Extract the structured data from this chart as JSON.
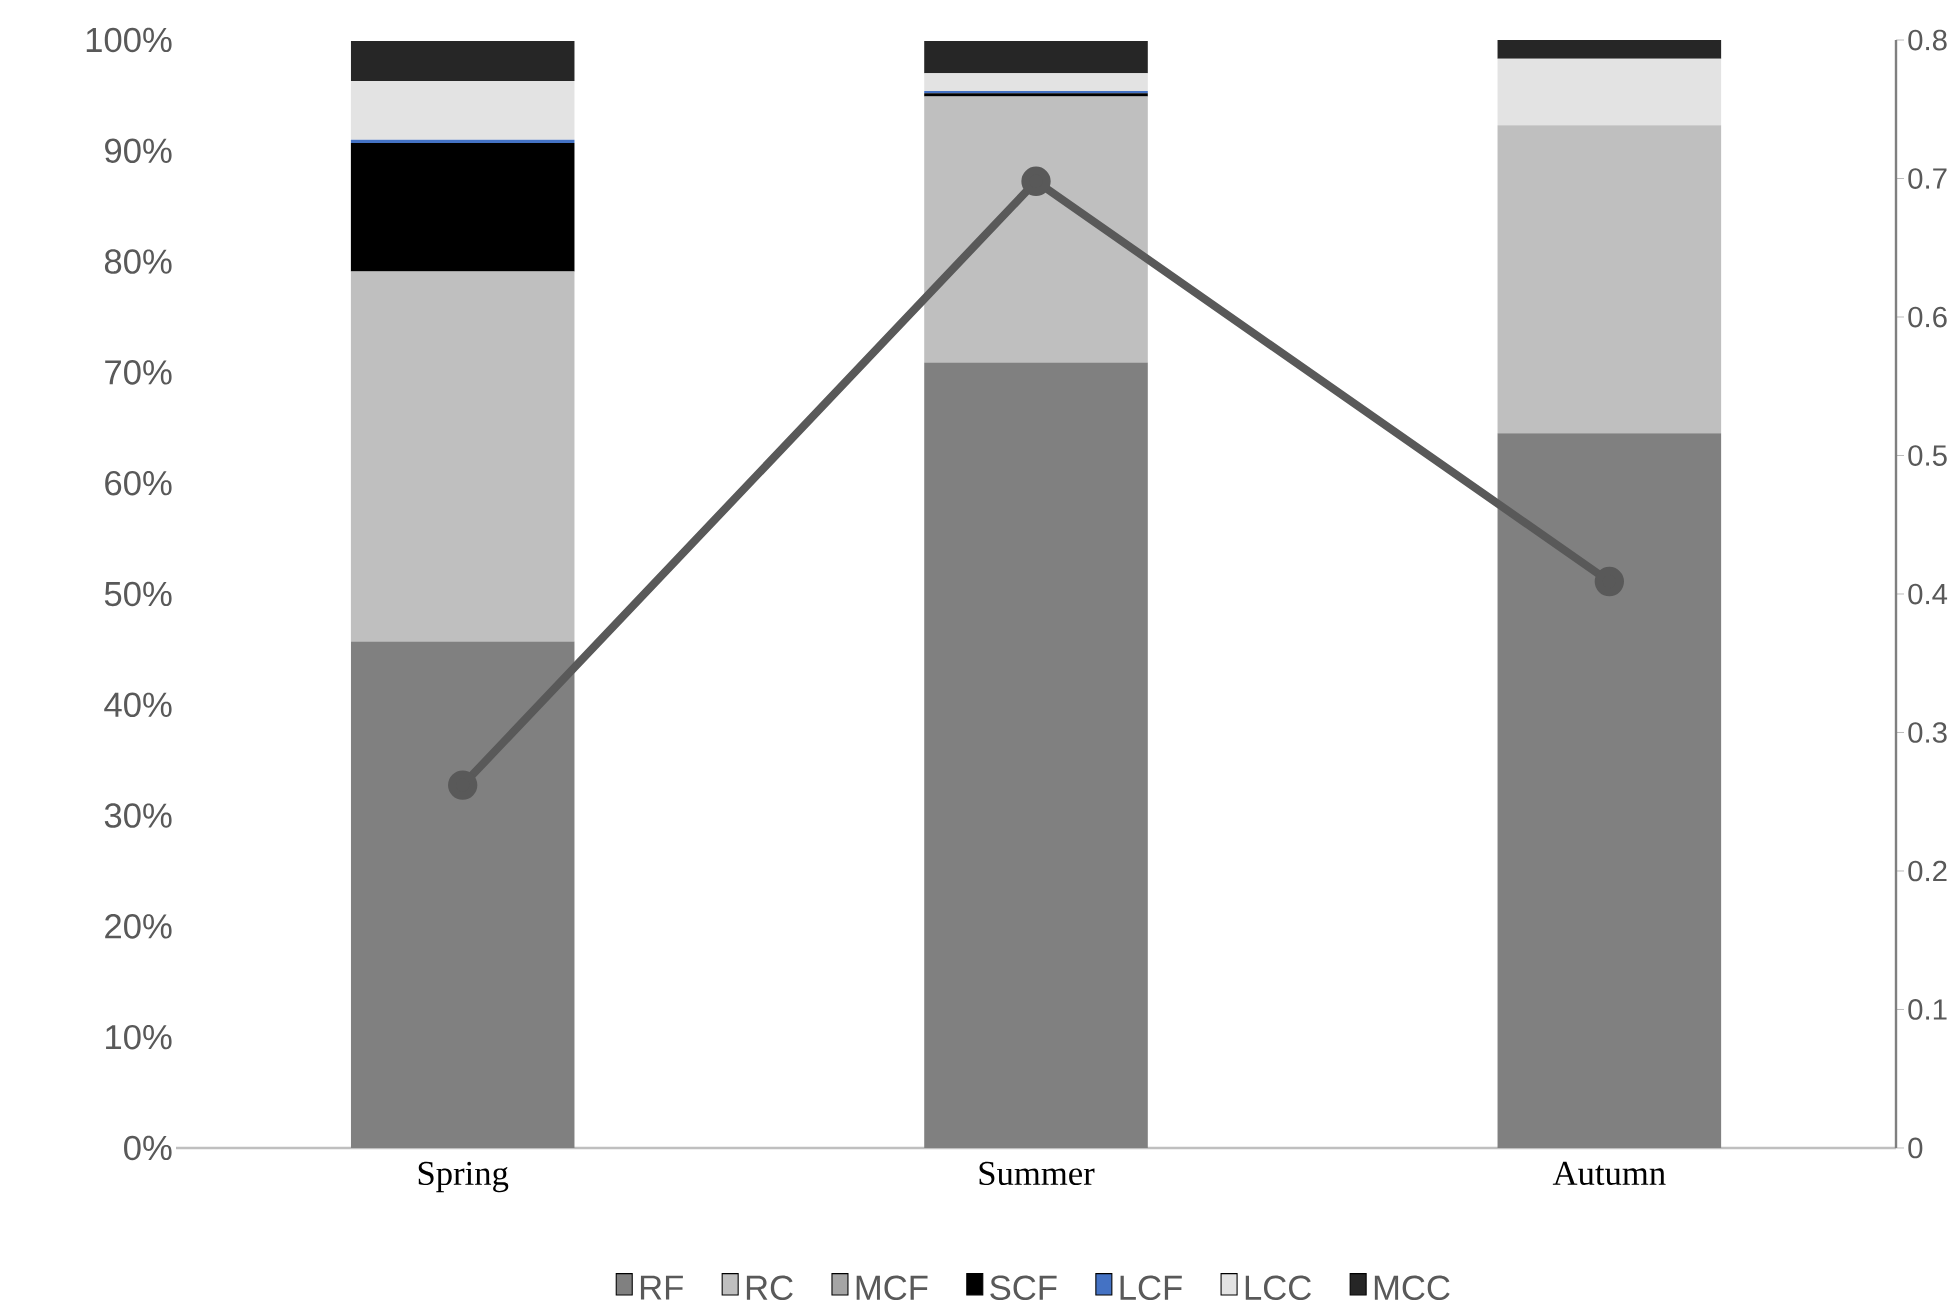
{
  "chart_data": {
    "type": "bar",
    "stacked": true,
    "categories": [
      "Spring",
      "Summer",
      "Autumn"
    ],
    "series": [
      {
        "name": "RF",
        "color": "#808080",
        "values": [
          45.7,
          70.9,
          64.5
        ]
      },
      {
        "name": "RC",
        "color": "#bfbfbf",
        "values": [
          33.4,
          24.0,
          27.8
        ]
      },
      {
        "name": "MCF",
        "color": "#a5a5a5",
        "values": [
          null,
          null,
          0
        ]
      },
      {
        "name": "SCF",
        "color": "#000000",
        "values": [
          11.6,
          0.3,
          0
        ]
      },
      {
        "name": "LCF",
        "color": "#4472c4",
        "values": [
          0.3,
          0.2,
          0
        ]
      },
      {
        "name": "LCC",
        "color": "#e3e3e3",
        "values": [
          5.3,
          1.6,
          6.0
        ]
      },
      {
        "name": "MCC",
        "color": "#262626",
        "values": [
          3.6,
          2.9,
          1.7
        ]
      },
      {
        "type": "line",
        "axis": "y2",
        "color": "#595959",
        "marker": "circle",
        "values": [
          0.262,
          0.698,
          0.409
        ]
      }
    ],
    "ylim": [
      0,
      100
    ],
    "yticks": [
      {
        "value": 0,
        "label": "0%"
      },
      {
        "value": 10,
        "label": "10%"
      },
      {
        "value": 20,
        "label": "20%"
      },
      {
        "value": 30,
        "label": "30%"
      },
      {
        "value": 40,
        "label": "40%"
      },
      {
        "value": 50,
        "label": "50%"
      },
      {
        "value": 60,
        "label": "60%"
      },
      {
        "value": 70,
        "label": "70%"
      },
      {
        "value": 80,
        "label": "80%"
      },
      {
        "value": 90,
        "label": "90%"
      },
      {
        "value": 100,
        "label": "100%"
      }
    ],
    "y2lim": [
      0,
      0.8
    ],
    "y2ticks": [
      0,
      0.1,
      0.2,
      0.3,
      0.4,
      0.5,
      0.6,
      0.7,
      0.8
    ],
    "legend": "bottom"
  }
}
